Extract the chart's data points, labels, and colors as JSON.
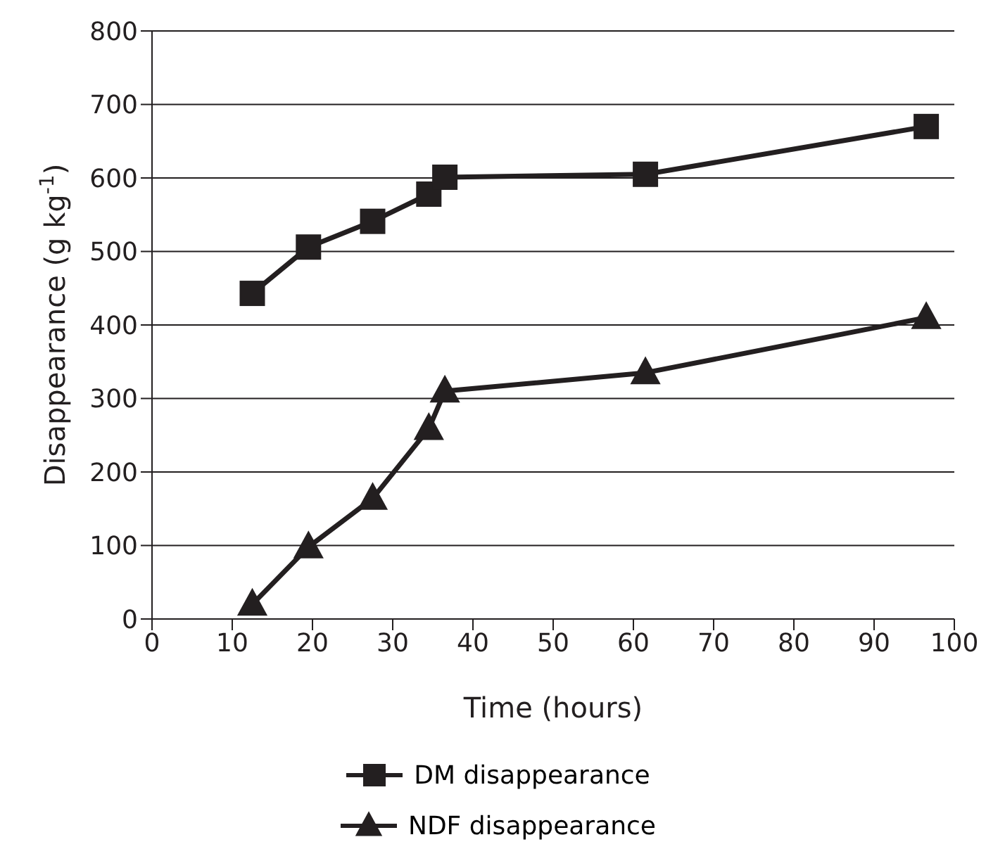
{
  "chart_data": {
    "type": "line",
    "xlabel": "Time (hours)",
    "ylabel": "Disappearance (g kg$^{-1}$)",
    "x": [
      12.5,
      19.5,
      27.5,
      34.5,
      36.5,
      61.5,
      96.5
    ],
    "series": [
      {
        "name": "DM disappearance",
        "color": "#231f20",
        "values": [
          443,
          506,
          541,
          578,
          601,
          605,
          670
        ],
        "marker": "square"
      },
      {
        "name": "NDF disappearance",
        "color": "#231f20",
        "values": [
          20,
          98,
          164,
          259,
          310,
          335,
          410
        ],
        "marker": "triangle"
      }
    ],
    "xlim": [
      0,
      100
    ],
    "xticks": [
      0,
      10,
      20,
      30,
      40,
      50,
      60,
      70,
      80,
      90,
      100
    ],
    "ylim": [
      0,
      800
    ],
    "yticks": [
      0,
      100,
      200,
      300,
      400,
      500,
      600,
      700,
      800
    ],
    "grid": "y",
    "legend": "bottom",
    "line_style": "solid"
  }
}
